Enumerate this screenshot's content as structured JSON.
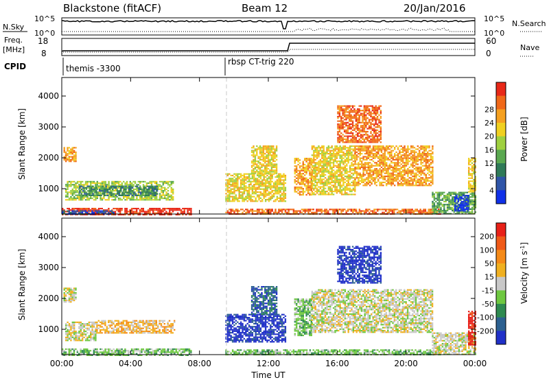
{
  "header": {
    "title": "Blackstone (fitACF)",
    "beam": "Beam 12",
    "date": "20/Jan/2016"
  },
  "top_panels": {
    "nsky_label": "N.Sky",
    "nsearch_label": "N.Search",
    "nsky_ticks": [
      "10^5",
      "10^0"
    ],
    "nsearch_ticks": [
      "10^5",
      "10^0"
    ],
    "freq_label": "Freq.",
    "freq_unit": "[MHz]",
    "freq_ticks": [
      "18",
      "8"
    ],
    "nave_label": "Nave",
    "nave_ticks": [
      "60",
      "0"
    ],
    "cpid_label": "CPID",
    "cpid_segments": [
      {
        "label": "themis -3300",
        "start_hour": 0
      },
      {
        "label": "rbsp CT-trig 220",
        "start_hour": 9.5
      }
    ]
  },
  "chart_data": [
    {
      "type": "heatmap",
      "title": "",
      "quantity": "Power",
      "ylabel": "Slant Range [km]",
      "xlabel": "",
      "xlim": [
        0,
        24
      ],
      "ylim": [
        180,
        4600
      ],
      "x_tick_labels": [
        "00:00",
        "04:00",
        "08:00",
        "12:00",
        "16:00",
        "20:00",
        "00:00"
      ],
      "y_ticks": [
        1000,
        2000,
        3000,
        4000
      ],
      "colorbar": {
        "label": "Power [dB]",
        "ticks": [
          "4",
          "8",
          "12",
          "16",
          "20",
          "24",
          "28"
        ],
        "colors": [
          "#1030e8",
          "#2f55a8",
          "#2f7a58",
          "#5aa850",
          "#9fd040",
          "#f0d020",
          "#f5a020",
          "#f06818",
          "#e82818"
        ]
      },
      "regions": [
        {
          "t0": 0.0,
          "t1": 7.5,
          "r0": 180,
          "r1": 380,
          "level": 8
        },
        {
          "t0": 0.0,
          "t1": 3.0,
          "r0": 180,
          "r1": 300,
          "level": 1
        },
        {
          "t0": 0.2,
          "t1": 6.5,
          "r0": 650,
          "r1": 1250,
          "level": 4
        },
        {
          "t0": 1.0,
          "t1": 5.5,
          "r0": 800,
          "r1": 1100,
          "level": 2
        },
        {
          "t0": 0.1,
          "t1": 0.8,
          "r0": 1900,
          "r1": 2350,
          "level": 6
        },
        {
          "t0": 9.5,
          "t1": 22.0,
          "r0": 180,
          "r1": 350,
          "level": 7
        },
        {
          "t0": 9.5,
          "t1": 13.0,
          "r0": 600,
          "r1": 1500,
          "level": 5
        },
        {
          "t0": 11.0,
          "t1": 12.5,
          "r0": 1500,
          "r1": 2400,
          "level": 5
        },
        {
          "t0": 13.5,
          "t1": 14.5,
          "r0": 800,
          "r1": 2000,
          "level": 6
        },
        {
          "t0": 14.5,
          "t1": 17.0,
          "r0": 800,
          "r1": 2400,
          "level": 5
        },
        {
          "t0": 17.0,
          "t1": 21.5,
          "r0": 1100,
          "r1": 2400,
          "level": 6
        },
        {
          "t0": 16.0,
          "t1": 18.5,
          "r0": 2500,
          "r1": 3700,
          "level": 7
        },
        {
          "t0": 21.5,
          "t1": 24.0,
          "r0": 200,
          "r1": 900,
          "level": 3
        },
        {
          "t0": 22.8,
          "t1": 23.6,
          "r0": 300,
          "r1": 800,
          "level": 0
        },
        {
          "t0": 23.6,
          "t1": 24.0,
          "r0": 900,
          "r1": 2000,
          "level": 5
        }
      ]
    },
    {
      "type": "heatmap",
      "title": "",
      "quantity": "Velocity",
      "ylabel": "Slant Range [km]",
      "xlabel": "Time UT",
      "xlim": [
        0,
        24
      ],
      "ylim": [
        180,
        4600
      ],
      "x_tick_labels": [
        "00:00",
        "04:00",
        "08:00",
        "12:00",
        "16:00",
        "20:00",
        "00:00"
      ],
      "y_ticks": [
        1000,
        2000,
        3000,
        4000
      ],
      "colorbar": {
        "label": "Velocity [m s",
        "label_superscript": "-1",
        "label_close": "]",
        "ticks": [
          "200",
          "100",
          "50",
          "15",
          "-15",
          "-50",
          "-100",
          "-200"
        ],
        "colors": [
          "#2030c8",
          "#2c6090",
          "#2e8a50",
          "#6ec840",
          "#c8c8c8",
          "#f0b020",
          "#f58a18",
          "#f05a18",
          "#e82018"
        ]
      },
      "regions": [
        {
          "t0": 0.0,
          "t1": 7.5,
          "r0": 180,
          "r1": 380,
          "level": 3
        },
        {
          "t0": 0.2,
          "t1": 2.0,
          "r0": 650,
          "r1": 1250,
          "level": 4
        },
        {
          "t0": 2.0,
          "t1": 6.5,
          "r0": 900,
          "r1": 1300,
          "level": 5
        },
        {
          "t0": 0.1,
          "t1": 0.8,
          "r0": 1900,
          "r1": 2350,
          "level": 4
        },
        {
          "t0": 9.5,
          "t1": 22.0,
          "r0": 180,
          "r1": 350,
          "level": 3
        },
        {
          "t0": 9.5,
          "t1": 13.0,
          "r0": 600,
          "r1": 1500,
          "level": 0
        },
        {
          "t0": 11.0,
          "t1": 12.5,
          "r0": 1500,
          "r1": 2400,
          "level": 1
        },
        {
          "t0": 13.5,
          "t1": 14.5,
          "r0": 800,
          "r1": 2000,
          "level": 3
        },
        {
          "t0": 14.5,
          "t1": 21.5,
          "r0": 900,
          "r1": 2300,
          "level": 4
        },
        {
          "t0": 16.0,
          "t1": 18.5,
          "r0": 2500,
          "r1": 3700,
          "level": 0
        },
        {
          "t0": 21.5,
          "t1": 24.0,
          "r0": 200,
          "r1": 900,
          "level": 4
        },
        {
          "t0": 23.6,
          "t1": 24.0,
          "r0": 500,
          "r1": 1600,
          "level": 8
        }
      ]
    }
  ]
}
